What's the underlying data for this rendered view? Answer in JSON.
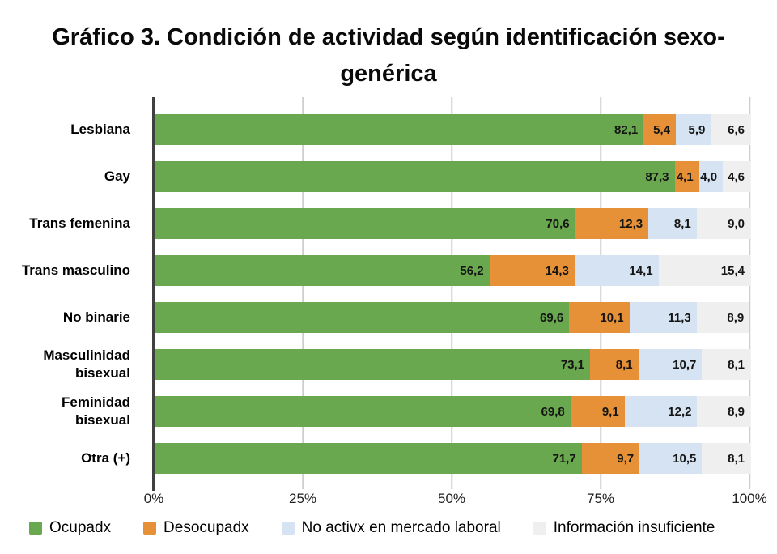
{
  "chart_data": {
    "type": "bar",
    "orientation": "horizontal",
    "stacked": true,
    "title": "Gráfico 3. Condición de actividad según identificación sexo-genérica",
    "title_lines": [
      "Gráfico 3. Condición de actividad según identificación sexo-",
      "genérica"
    ],
    "categories": [
      "Lesbiana",
      "Gay",
      "Trans femenina",
      "Trans masculino",
      "No binarie",
      "Masculinidad bisexual",
      "Feminidad bisexual",
      "Otra (+)"
    ],
    "series": [
      {
        "name": "Ocupadx",
        "color": "#6aa84f",
        "values": [
          82.1,
          87.3,
          70.6,
          56.2,
          69.6,
          73.1,
          69.8,
          71.7
        ]
      },
      {
        "name": "Desocupadx",
        "color": "#e69138",
        "values": [
          5.4,
          4.1,
          12.3,
          14.3,
          10.1,
          8.1,
          9.1,
          9.7
        ]
      },
      {
        "name": "No activx en mercado laboral",
        "color": "#d5e3f2",
        "values": [
          5.9,
          4.0,
          8.1,
          14.1,
          11.3,
          10.7,
          12.2,
          10.5
        ]
      },
      {
        "name": "Información insuficiente",
        "color": "#efefef",
        "values": [
          6.6,
          4.6,
          9.0,
          15.4,
          8.9,
          8.1,
          8.9,
          8.1
        ]
      }
    ],
    "x_ticks": [
      {
        "label": "0%",
        "pct": 0
      },
      {
        "label": "25%",
        "pct": 25
      },
      {
        "label": "50%",
        "pct": 50
      },
      {
        "label": "75%",
        "pct": 75
      },
      {
        "label": "100%",
        "pct": 100
      }
    ],
    "xlim": [
      0,
      100
    ],
    "grid": true,
    "legend_position": "bottom",
    "decimal_separator": ",",
    "value_label_decimals": 1,
    "colors": {
      "axis_line": "#404040",
      "gridline": "#cdcdcd",
      "value_label": "#141414",
      "background": "#ffffff"
    }
  }
}
